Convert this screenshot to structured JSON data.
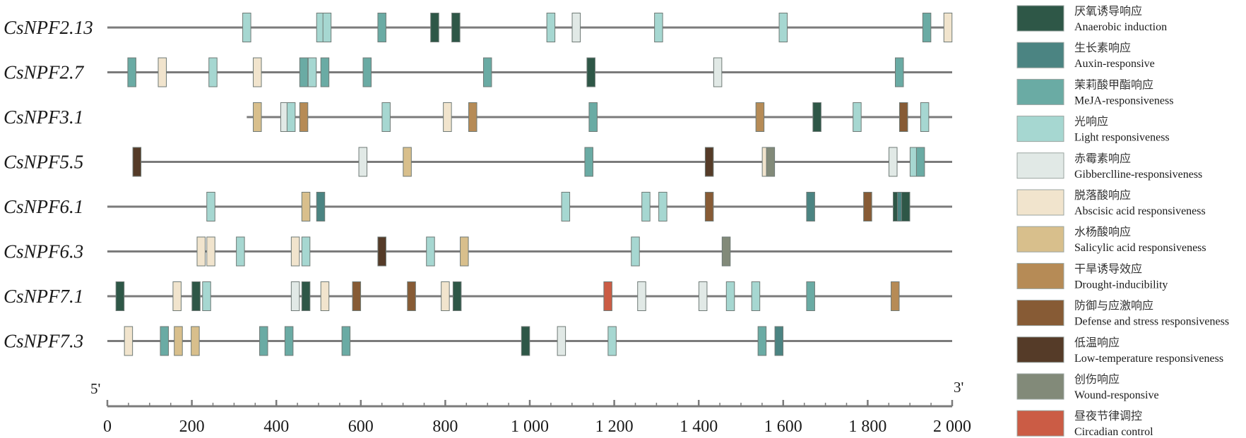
{
  "chart_data": {
    "type": "element-map",
    "x_range": [
      0,
      2000
    ],
    "ticks": [
      0,
      200,
      400,
      600,
      800,
      1000,
      1200,
      1400,
      1600,
      1800,
      2000
    ],
    "tick_labels": [
      "0",
      "200",
      "400",
      "600",
      "800",
      "1 000",
      "1 200",
      "1 400",
      "1 600",
      "1 800",
      "2 000"
    ],
    "end5_label": "5'",
    "end3_label": "3'",
    "categories": [
      {
        "id": "anaerobic",
        "zh": "厌氧诱导响应",
        "en": "Anaerobic induction",
        "color": "#2e5747"
      },
      {
        "id": "auxin",
        "zh": "生长素响应",
        "en": "Auxin-responsive",
        "color": "#4b8482"
      },
      {
        "id": "meja",
        "zh": "茉莉酸甲酯响应",
        "en": "MeJA-responsiveness",
        "color": "#6aaba4"
      },
      {
        "id": "light",
        "zh": "光响应",
        "en": "Light responsiveness",
        "color": "#a6d7d1"
      },
      {
        "id": "gibberellin",
        "zh": "赤霉素响应",
        "en": "Gibberclline-responsiveness",
        "color": "#e1e9e6"
      },
      {
        "id": "aba",
        "zh": "脱落酸响应",
        "en": "Abscisic acid responsiveness",
        "color": "#f1e4cd"
      },
      {
        "id": "salicylic",
        "zh": "水杨酸响应",
        "en": "Salicylic acid responsiveness",
        "color": "#d8bf8c"
      },
      {
        "id": "drought",
        "zh": "干旱诱导效应",
        "en": "Drought-inducibility",
        "color": "#b68b56"
      },
      {
        "id": "defense",
        "zh": "防御与应激响应",
        "en": "Defense and stress responsiveness",
        "color": "#875b35"
      },
      {
        "id": "lowtemp",
        "zh": "低温响应",
        "en": "Low-temperature responsiveness",
        "color": "#553b28"
      },
      {
        "id": "wound",
        "zh": "创伤响应",
        "en": "Wound-responsive",
        "color": "#828a79"
      },
      {
        "id": "circadian",
        "zh": "昼夜节律调控",
        "en": "Circadian control",
        "color": "#cb5c45"
      }
    ],
    "genes": [
      {
        "name": "CsNPF2.13",
        "line_start": 0,
        "line_end": 2000,
        "elements": [
          {
            "pos": 330,
            "type": "light"
          },
          {
            "pos": 505,
            "type": "light"
          },
          {
            "pos": 520,
            "type": "light"
          },
          {
            "pos": 650,
            "type": "meja"
          },
          {
            "pos": 775,
            "type": "anaerobic"
          },
          {
            "pos": 825,
            "type": "anaerobic"
          },
          {
            "pos": 1050,
            "type": "light"
          },
          {
            "pos": 1110,
            "type": "gibberellin"
          },
          {
            "pos": 1305,
            "type": "light"
          },
          {
            "pos": 1600,
            "type": "light"
          },
          {
            "pos": 1940,
            "type": "meja"
          },
          {
            "pos": 1990,
            "type": "aba"
          }
        ]
      },
      {
        "name": "CsNPF2.7",
        "line_start": 0,
        "line_end": 2000,
        "elements": [
          {
            "pos": 58,
            "type": "meja"
          },
          {
            "pos": 130,
            "type": "aba"
          },
          {
            "pos": 250,
            "type": "light"
          },
          {
            "pos": 355,
            "type": "aba"
          },
          {
            "pos": 465,
            "type": "meja"
          },
          {
            "pos": 485,
            "type": "light"
          },
          {
            "pos": 515,
            "type": "meja"
          },
          {
            "pos": 615,
            "type": "meja"
          },
          {
            "pos": 900,
            "type": "meja"
          },
          {
            "pos": 1145,
            "type": "anaerobic"
          },
          {
            "pos": 1445,
            "type": "gibberellin"
          },
          {
            "pos": 1875,
            "type": "meja"
          }
        ]
      },
      {
        "name": "CsNPF3.1",
        "line_start": 330,
        "line_end": 2000,
        "elements": [
          {
            "pos": 355,
            "type": "salicylic"
          },
          {
            "pos": 420,
            "type": "gibberellin"
          },
          {
            "pos": 435,
            "type": "light"
          },
          {
            "pos": 465,
            "type": "drought"
          },
          {
            "pos": 660,
            "type": "light"
          },
          {
            "pos": 805,
            "type": "aba"
          },
          {
            "pos": 865,
            "type": "drought"
          },
          {
            "pos": 1150,
            "type": "meja"
          },
          {
            "pos": 1545,
            "type": "drought"
          },
          {
            "pos": 1680,
            "type": "anaerobic"
          },
          {
            "pos": 1775,
            "type": "light"
          },
          {
            "pos": 1885,
            "type": "defense"
          },
          {
            "pos": 1935,
            "type": "light"
          }
        ]
      },
      {
        "name": "CsNPF5.5",
        "line_start": 60,
        "line_end": 2000,
        "elements": [
          {
            "pos": 70,
            "type": "lowtemp"
          },
          {
            "pos": 605,
            "type": "gibberellin"
          },
          {
            "pos": 710,
            "type": "salicylic"
          },
          {
            "pos": 1140,
            "type": "meja"
          },
          {
            "pos": 1425,
            "type": "lowtemp"
          },
          {
            "pos": 1560,
            "type": "aba"
          },
          {
            "pos": 1570,
            "type": "wound"
          },
          {
            "pos": 1860,
            "type": "gibberellin"
          },
          {
            "pos": 1910,
            "type": "light"
          },
          {
            "pos": 1925,
            "type": "meja"
          }
        ]
      },
      {
        "name": "CsNPF6.1",
        "line_start": 0,
        "line_end": 2000,
        "elements": [
          {
            "pos": 245,
            "type": "light"
          },
          {
            "pos": 470,
            "type": "salicylic"
          },
          {
            "pos": 505,
            "type": "auxin"
          },
          {
            "pos": 1085,
            "type": "light"
          },
          {
            "pos": 1275,
            "type": "light"
          },
          {
            "pos": 1315,
            "type": "light"
          },
          {
            "pos": 1425,
            "type": "defense"
          },
          {
            "pos": 1665,
            "type": "auxin"
          },
          {
            "pos": 1800,
            "type": "defense"
          },
          {
            "pos": 1870,
            "type": "anaerobic"
          },
          {
            "pos": 1880,
            "type": "auxin"
          },
          {
            "pos": 1890,
            "type": "anaerobic"
          }
        ]
      },
      {
        "name": "CsNPF6.3",
        "line_start": 0,
        "line_end": 2000,
        "elements": [
          {
            "pos": 222,
            "type": "aba"
          },
          {
            "pos": 245,
            "type": "aba"
          },
          {
            "pos": 315,
            "type": "light"
          },
          {
            "pos": 445,
            "type": "aba"
          },
          {
            "pos": 470,
            "type": "light"
          },
          {
            "pos": 650,
            "type": "lowtemp"
          },
          {
            "pos": 765,
            "type": "light"
          },
          {
            "pos": 845,
            "type": "salicylic"
          },
          {
            "pos": 1250,
            "type": "light"
          },
          {
            "pos": 1465,
            "type": "wound"
          }
        ]
      },
      {
        "name": "CsNPF7.1",
        "line_start": 0,
        "line_end": 2000,
        "elements": [
          {
            "pos": 30,
            "type": "anaerobic"
          },
          {
            "pos": 165,
            "type": "aba"
          },
          {
            "pos": 210,
            "type": "anaerobic"
          },
          {
            "pos": 235,
            "type": "light"
          },
          {
            "pos": 445,
            "type": "gibberellin"
          },
          {
            "pos": 470,
            "type": "anaerobic"
          },
          {
            "pos": 515,
            "type": "aba"
          },
          {
            "pos": 590,
            "type": "defense"
          },
          {
            "pos": 720,
            "type": "defense"
          },
          {
            "pos": 800,
            "type": "aba"
          },
          {
            "pos": 828,
            "type": "anaerobic"
          },
          {
            "pos": 1185,
            "type": "circadian"
          },
          {
            "pos": 1265,
            "type": "gibberellin"
          },
          {
            "pos": 1410,
            "type": "gibberellin"
          },
          {
            "pos": 1475,
            "type": "light"
          },
          {
            "pos": 1535,
            "type": "light"
          },
          {
            "pos": 1665,
            "type": "meja"
          },
          {
            "pos": 1865,
            "type": "drought"
          }
        ]
      },
      {
        "name": "CsNPF7.3",
        "line_start": 0,
        "line_end": 2000,
        "elements": [
          {
            "pos": 50,
            "type": "aba"
          },
          {
            "pos": 135,
            "type": "meja"
          },
          {
            "pos": 168,
            "type": "salicylic"
          },
          {
            "pos": 208,
            "type": "salicylic"
          },
          {
            "pos": 370,
            "type": "meja"
          },
          {
            "pos": 430,
            "type": "meja"
          },
          {
            "pos": 565,
            "type": "meja"
          },
          {
            "pos": 990,
            "type": "anaerobic"
          },
          {
            "pos": 1075,
            "type": "gibberellin"
          },
          {
            "pos": 1195,
            "type": "light"
          },
          {
            "pos": 1550,
            "type": "meja"
          },
          {
            "pos": 1590,
            "type": "auxin"
          }
        ]
      }
    ]
  }
}
